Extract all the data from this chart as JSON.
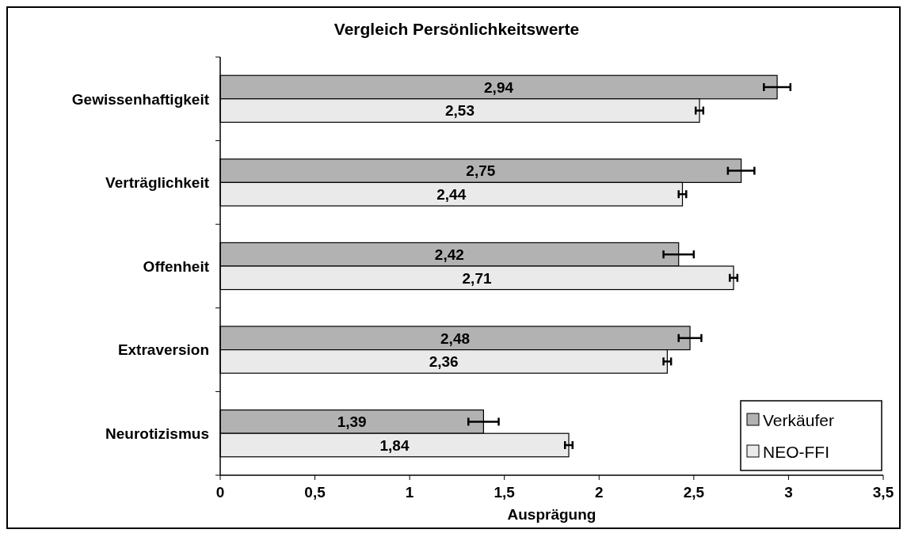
{
  "chart_data": {
    "type": "bar",
    "orientation": "horizontal",
    "title": "Vergleich Persönlichkeitswerte",
    "xlabel": "Ausprägung",
    "categories": [
      "Gewissenhaftigkeit",
      "Verträglichkeit",
      "Offenheit",
      "Extraversion",
      "Neurotizismus"
    ],
    "series": [
      {
        "name": "Verkäufer",
        "color": "#b2b2b2",
        "values": [
          2.94,
          2.75,
          2.42,
          2.48,
          1.39
        ],
        "errors": [
          0.07,
          0.07,
          0.08,
          0.06,
          0.08
        ],
        "value_labels": [
          "2,94",
          "2,75",
          "2,42",
          "2,48",
          "1,39"
        ]
      },
      {
        "name": "NEO-FFI",
        "color": "#eaeaea",
        "values": [
          2.53,
          2.44,
          2.71,
          2.36,
          1.84
        ],
        "errors": [
          0.02,
          0.02,
          0.02,
          0.02,
          0.02
        ],
        "value_labels": [
          "2,53",
          "2,44",
          "2,71",
          "2,36",
          "1,84"
        ]
      }
    ],
    "xlim": [
      0,
      3.5
    ],
    "xticks": [
      0,
      {
        "value": 0.5,
        "label": "0,5"
      },
      1,
      {
        "value": 1.5,
        "label": "1,5"
      },
      2,
      {
        "value": 2.5,
        "label": "2,5"
      },
      3,
      {
        "value": 3.5,
        "label": "3,5"
      }
    ],
    "grid": false,
    "legend": "bottom right"
  }
}
